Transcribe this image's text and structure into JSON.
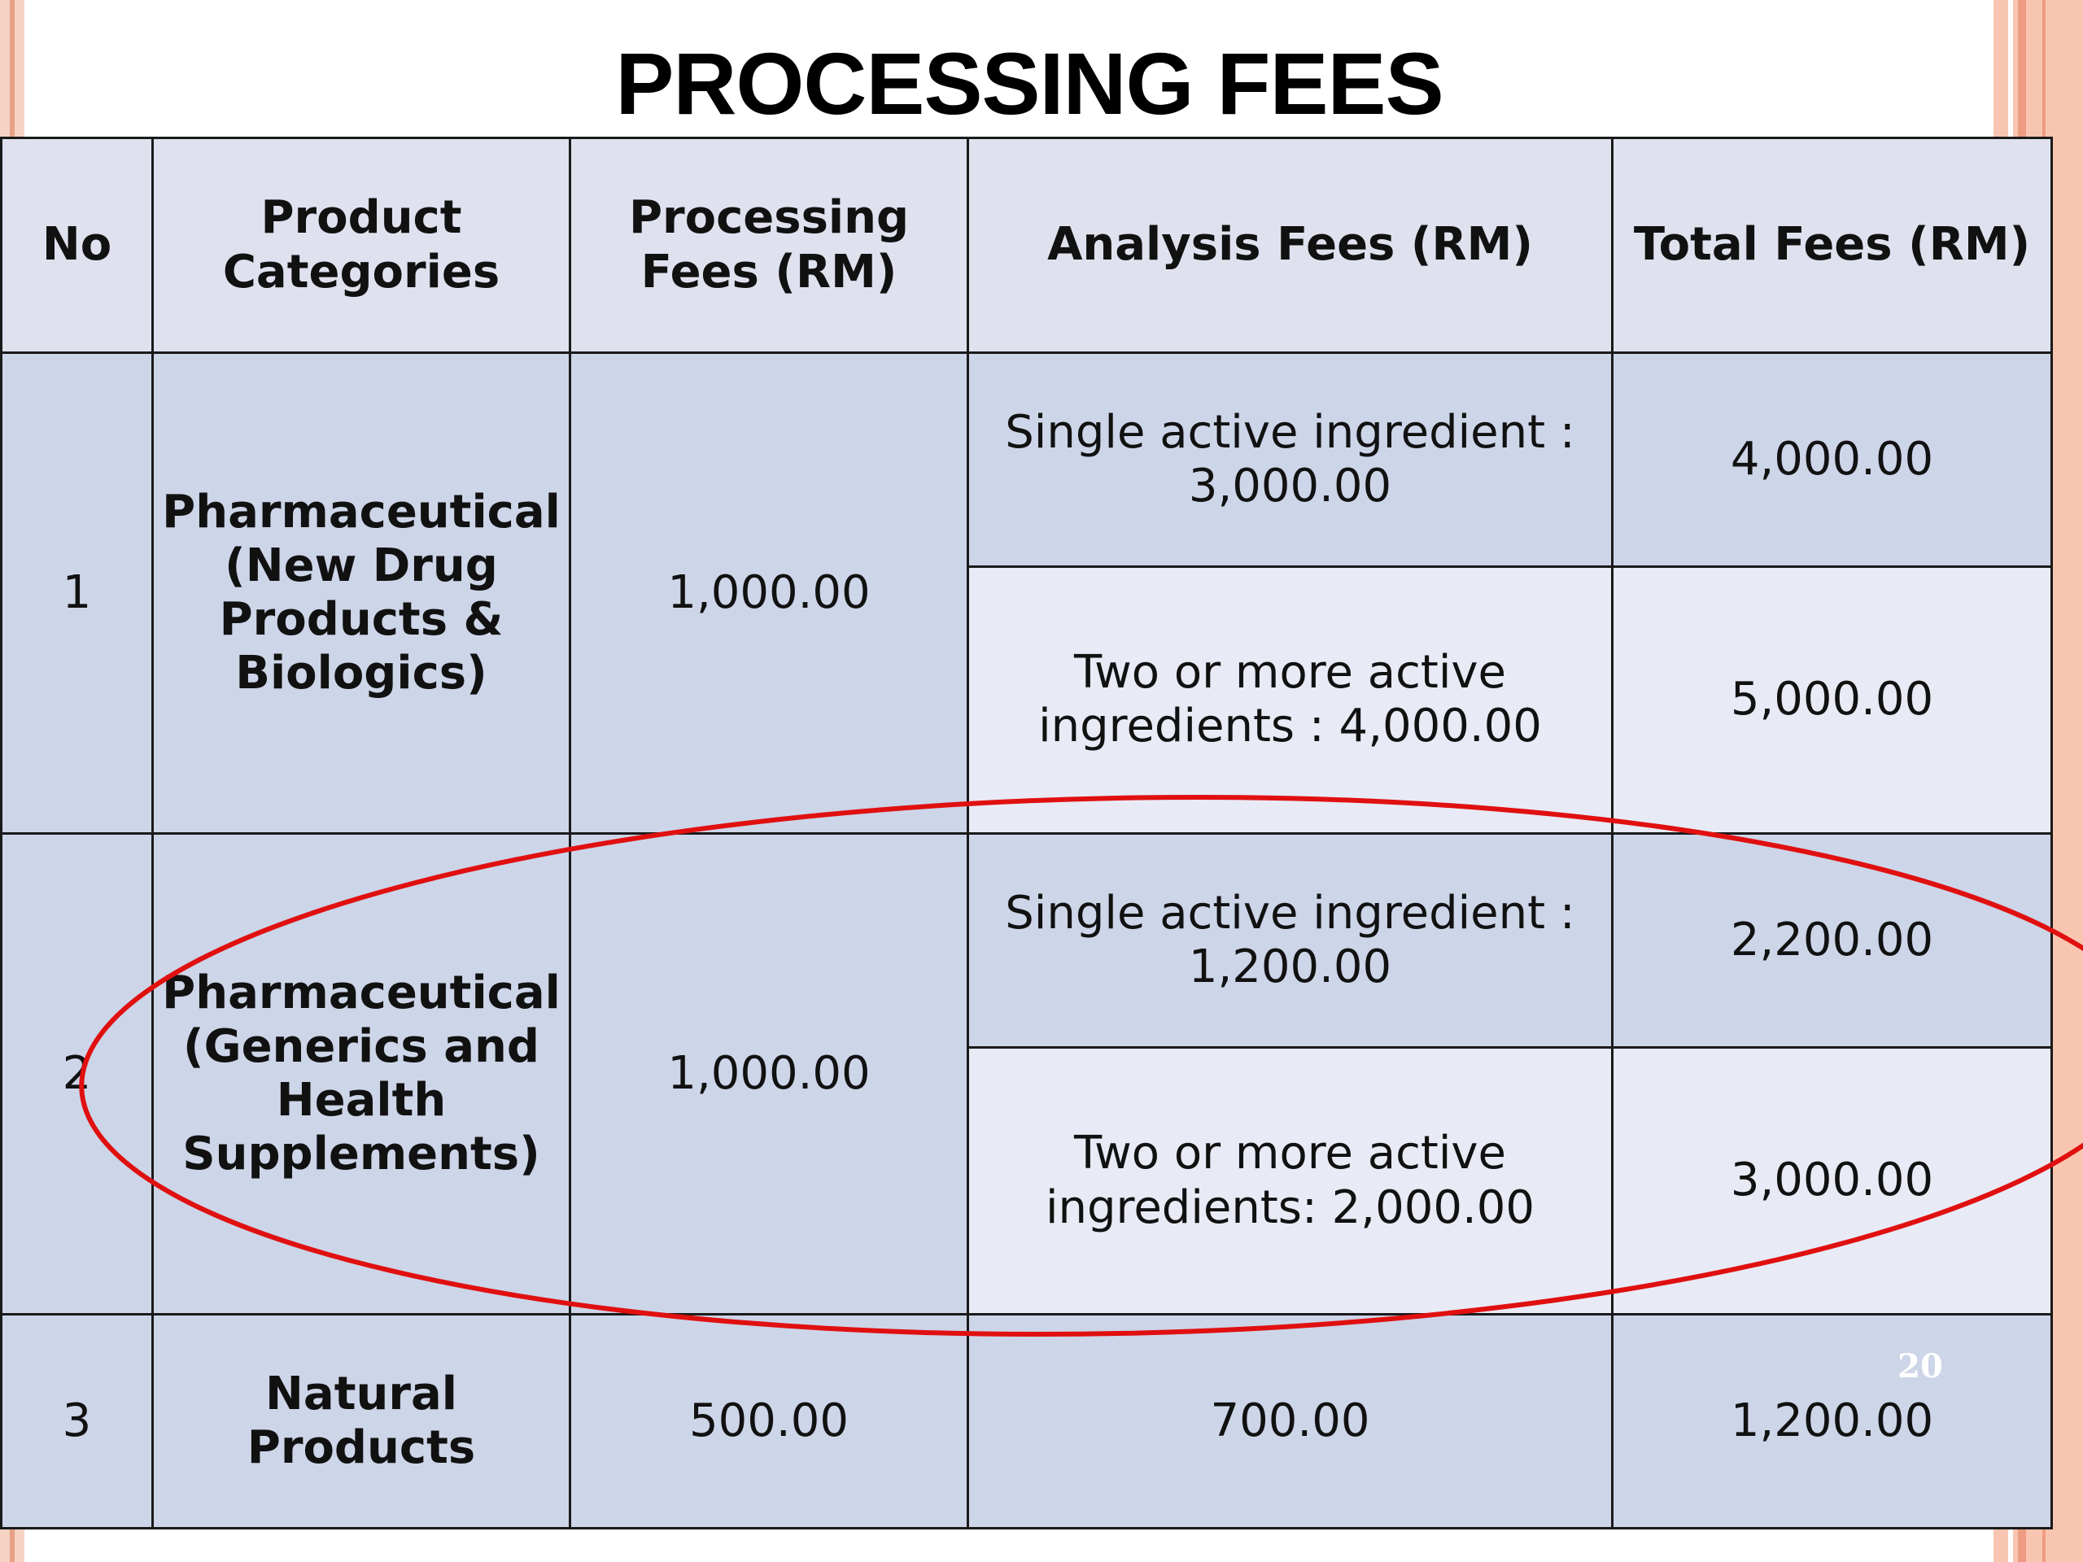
{
  "slide": {
    "title": "PROCESSING FEES",
    "page_number": "20",
    "border_colors": [
      "#f6d2c4",
      "#e8a088",
      "#f8c6b0",
      "#ef9c82"
    ],
    "annotation_color": "#e01010"
  },
  "table": {
    "headers": {
      "no": "No",
      "category": "Product Categories",
      "processing": "Processing Fees (RM)",
      "analysis": "Analysis Fees (RM)",
      "total": "Total Fees (RM)"
    },
    "rows": [
      {
        "no": "1",
        "category": "Pharmaceutical (New Drug Products & Biologics)",
        "processing": "1,000.00",
        "sub": [
          {
            "analysis": "Single active ingredient : 3,000.00",
            "total": "4,000.00"
          },
          {
            "analysis": "Two or more active ingredients : 4,000.00",
            "total": "5,000.00"
          }
        ]
      },
      {
        "no": "2",
        "category": "Pharmaceutical (Generics and Health Supplements)",
        "processing": "1,000.00",
        "sub": [
          {
            "analysis": "Single active ingredient : 1,200.00",
            "total": "2,200.00"
          },
          {
            "analysis": "Two or more active ingredients: 2,000.00",
            "total": "3,000.00"
          }
        ]
      },
      {
        "no": "3",
        "category": "Natural Products",
        "processing": "500.00",
        "analysis": "700.00",
        "total": "1,200.00"
      }
    ]
  }
}
